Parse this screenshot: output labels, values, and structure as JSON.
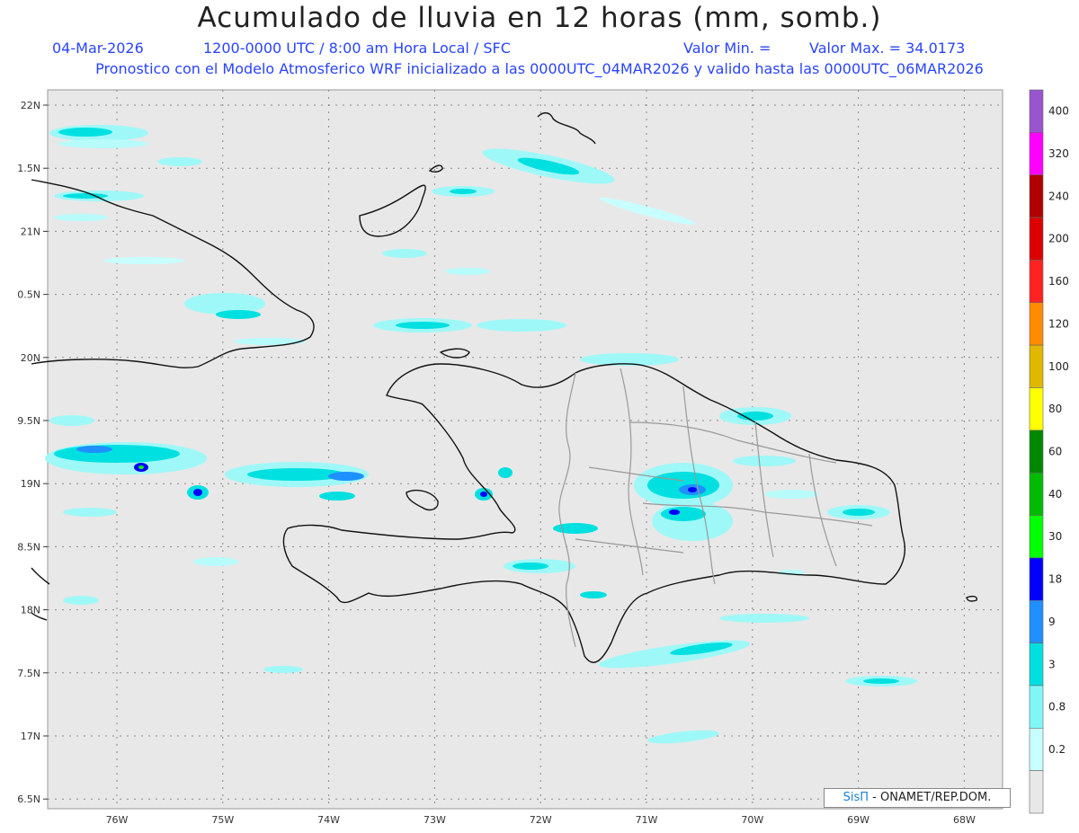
{
  "header": {
    "title": "Acumulado de lluvia en 12 horas (mm, somb.)",
    "date": "04-Mar-2026",
    "period": "1200-0000 UTC / 8:00 am Hora Local / SFC",
    "valor_min": "Valor Min. =",
    "valor_max": "Valor Max. = 34.0173",
    "model_line": "Pronostico con el Modelo Atmosferico WRF inicializado a las 0000UTC_04MAR2026 y valido hasta las  0000UTC_06MAR2026"
  },
  "axes": {
    "lat_labels": [
      "22N",
      "1.5N",
      "21N",
      "0.5N",
      "20N",
      "9.5N",
      "19N",
      "8.5N",
      "18N",
      "7.5N",
      "17N",
      "6.5N"
    ],
    "lon_labels": [
      "76W",
      "75W",
      "74W",
      "73W",
      "72W",
      "71W",
      "70W",
      "69W",
      "68W"
    ]
  },
  "colorbar": {
    "labels": [
      "400",
      "320",
      "240",
      "200",
      "160",
      "120",
      "100",
      "80",
      "60",
      "40",
      "30",
      "18",
      "9",
      "3",
      "0.8",
      "0.2"
    ],
    "colors": [
      "#9955cc",
      "#ff00ff",
      "#b00000",
      "#dd0000",
      "#ff2222",
      "#ff8c00",
      "#e0b800",
      "#ffff00",
      "#008800",
      "#00bb00",
      "#00ff00",
      "#0000ff",
      "#1e90ff",
      "#00e0e0",
      "#7ff7f7",
      "#c8ffff",
      "#e8e8e8"
    ]
  },
  "credit": {
    "brand": "SisΠ",
    "text": " - ONAMET/REP.DOM."
  }
}
